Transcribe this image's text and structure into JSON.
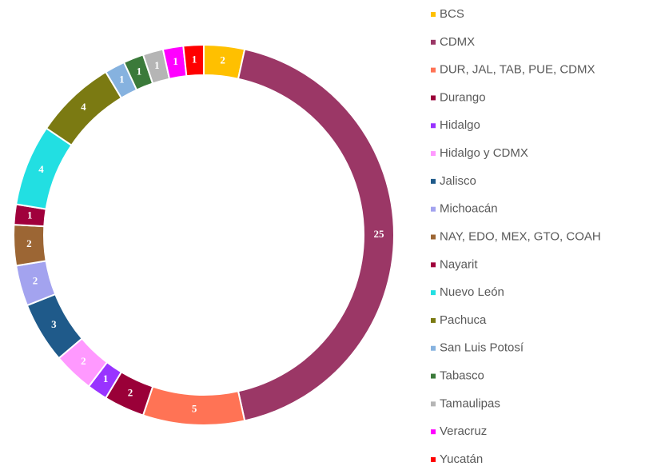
{
  "chart_data": {
    "type": "doughnut",
    "categories": [
      "BCS",
      "CDMX",
      "DUR, JAL, TAB, PUE, CDMX",
      "Durango",
      "Hidalgo",
      "Hidalgo y CDMX",
      "Jalisco",
      "Michoacán",
      "NAY, EDO, MEX, GTO, COAH",
      "Nayarit",
      "Nuevo León",
      "Pachuca",
      "San Luis Potosí",
      "Tabasco",
      "Tamaulipas",
      "Veracruz",
      "Yucatán"
    ],
    "values": [
      2,
      25,
      5,
      2,
      1,
      2,
      3,
      2,
      2,
      1,
      4,
      4,
      1,
      1,
      1,
      1,
      1
    ],
    "colors": [
      "#ffc000",
      "#9b3766",
      "#ff7355",
      "#9a0038",
      "#9933ff",
      "#ff99ff",
      "#1f5a8a",
      "#a3a3ef",
      "#9c6634",
      "#a0003c",
      "#22dfe2",
      "#7b7a12",
      "#86b2df",
      "#3b7a3a",
      "#b5b5b5",
      "#ff00ff",
      "#ff0000"
    ],
    "legend": "right"
  }
}
